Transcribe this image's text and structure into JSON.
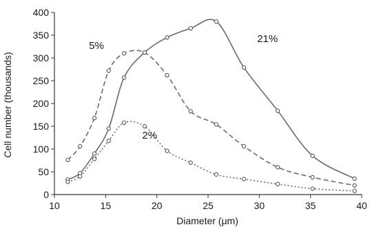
{
  "chart_data": {
    "type": "line",
    "title": "",
    "xlabel": "Diameter (μm)",
    "ylabel": "Cell number (thousands)",
    "xlim": [
      10,
      40
    ],
    "ylim": [
      0,
      400
    ],
    "xticks": [
      10,
      15,
      20,
      25,
      30,
      35,
      40
    ],
    "yticks": [
      0,
      50,
      100,
      150,
      200,
      250,
      300,
      350,
      400
    ],
    "grid": false,
    "legend": "none",
    "series": [
      {
        "name": "21%",
        "line_style": "solid",
        "color": "#6b6b6b",
        "x": [
          11.3,
          12.5,
          13.9,
          15.3,
          16.8,
          18.8,
          21.0,
          23.3,
          25.8,
          28.5,
          31.8,
          35.2,
          39.3
        ],
        "y": [
          33,
          47,
          90,
          145,
          257,
          312,
          345,
          365,
          380,
          279,
          184,
          85,
          35
        ]
      },
      {
        "name": "5%",
        "line_style": "dashed",
        "color": "#6b6b6b",
        "x": [
          11.3,
          12.5,
          13.9,
          15.3,
          16.8,
          18.8,
          21.0,
          23.3,
          25.8,
          28.5,
          31.8,
          35.2,
          39.3
        ],
        "y": [
          76,
          106,
          168,
          272,
          310,
          312,
          262,
          183,
          154,
          106,
          60,
          38,
          20
        ]
      },
      {
        "name": "2%",
        "line_style": "dotted",
        "color": "#6b6b6b",
        "x": [
          11.3,
          12.5,
          13.9,
          15.3,
          16.8,
          18.8,
          21.0,
          23.3,
          25.8,
          28.5,
          31.8,
          35.2,
          39.3
        ],
        "y": [
          28,
          40,
          78,
          118,
          158,
          150,
          96,
          70,
          44,
          34,
          23,
          13,
          8
        ]
      }
    ],
    "annotations": [
      {
        "text": "21%",
        "x": 30.8,
        "y": 335
      },
      {
        "text": "5%",
        "x": 14.1,
        "y": 320
      },
      {
        "text": "2%",
        "x": 19.3,
        "y": 123
      }
    ]
  }
}
